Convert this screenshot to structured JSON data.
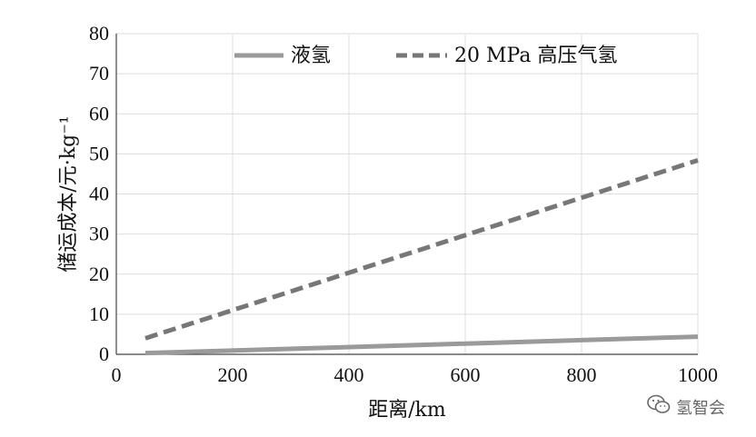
{
  "chart_data": {
    "type": "line",
    "xlabel": "距离/km",
    "ylabel": "储运成本/元·kg⁻¹",
    "xlim": [
      0,
      1000
    ],
    "ylim": [
      0,
      80
    ],
    "x_ticks": [
      0,
      200,
      400,
      600,
      800,
      1000
    ],
    "y_ticks": [
      0,
      10,
      20,
      30,
      40,
      50,
      60,
      70,
      80
    ],
    "grid": true,
    "legend_position": "top-right",
    "series": [
      {
        "name": "液氢",
        "style": "solid",
        "color": "#9a9a9a",
        "points": [
          [
            50,
            0.3
          ],
          [
            1000,
            4.4
          ]
        ]
      },
      {
        "name": "20 MPa 高压气氢",
        "style": "dashed",
        "color": "#777777",
        "points": [
          [
            50,
            4.0
          ],
          [
            1000,
            48.4
          ]
        ]
      }
    ]
  },
  "watermark": {
    "icon": "wechat-icon",
    "text": "氢智会"
  }
}
